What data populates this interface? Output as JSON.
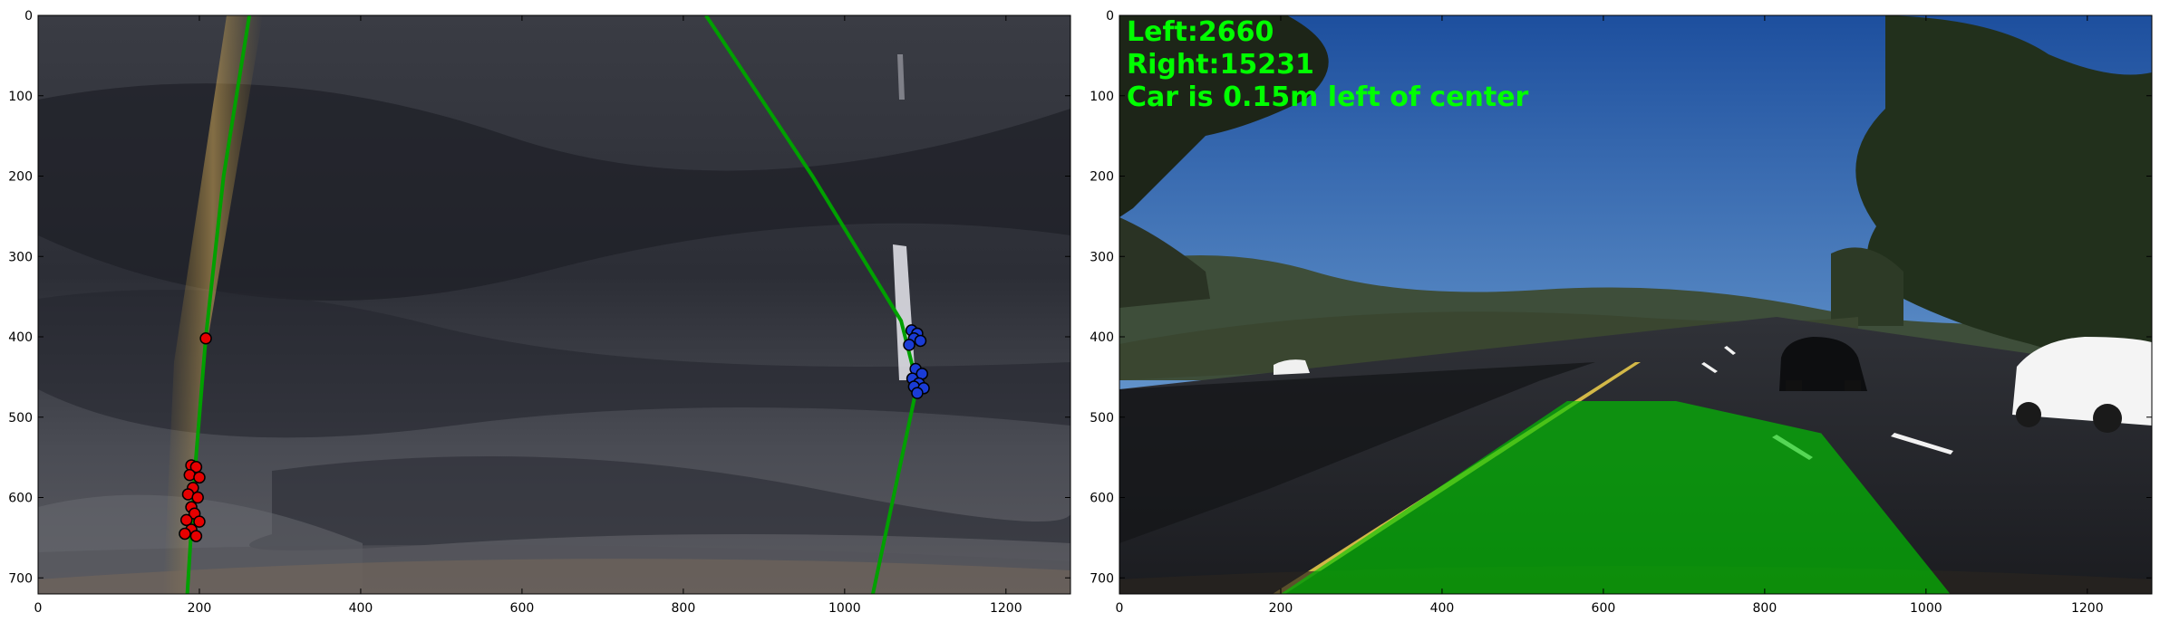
{
  "chart_data": [
    {
      "type": "scatter",
      "title": "",
      "xlabel": "",
      "ylabel": "",
      "xlim": [
        0,
        1280
      ],
      "ylim": [
        720,
        0
      ],
      "x_ticks": [
        0,
        200,
        400,
        600,
        800,
        1000,
        1200
      ],
      "y_ticks": [
        0,
        100,
        200,
        300,
        400,
        500,
        600,
        700
      ],
      "grid": false,
      "legend": "none",
      "background": "warped grayscale road image (bird's-eye view)",
      "series": [
        {
          "kind": "points",
          "color": "#e60000",
          "points": [
            [
              208,
              402
            ],
            [
              190,
              560
            ],
            [
              196,
              562
            ],
            [
              188,
              572
            ],
            [
              200,
              575
            ],
            [
              192,
              588
            ],
            [
              186,
              596
            ],
            [
              198,
              600
            ],
            [
              190,
              612
            ],
            [
              194,
              620
            ],
            [
              184,
              628
            ],
            [
              200,
              630
            ],
            [
              190,
              640
            ],
            [
              182,
              645
            ],
            [
              196,
              648
            ]
          ]
        },
        {
          "kind": "points",
          "color": "#1a3cd6",
          "points": [
            [
              1083,
              392
            ],
            [
              1090,
              396
            ],
            [
              1086,
              402
            ],
            [
              1094,
              405
            ],
            [
              1080,
              410
            ],
            [
              1088,
              440
            ],
            [
              1096,
              446
            ],
            [
              1084,
              452
            ],
            [
              1092,
              458
            ],
            [
              1086,
              462
            ],
            [
              1098,
              464
            ],
            [
              1090,
              470
            ]
          ]
        },
        {
          "kind": "fit-line",
          "color": "#00a000",
          "points": [
            [
              262,
              0
            ],
            [
              230,
              200
            ],
            [
              208,
              400
            ],
            [
              195,
              560
            ],
            [
              185,
              720
            ]
          ]
        },
        {
          "kind": "fit-line",
          "color": "#00a000",
          "points": [
            [
              828,
              0
            ],
            [
              960,
              200
            ],
            [
              1070,
              380
            ],
            [
              1090,
              460
            ],
            [
              1035,
              720
            ]
          ]
        }
      ]
    },
    {
      "type": "image",
      "title": "",
      "xlabel": "",
      "ylabel": "",
      "xlim": [
        0,
        1280
      ],
      "ylim": [
        720,
        0
      ],
      "x_ticks": [
        0,
        200,
        400,
        600,
        800,
        1000,
        1200
      ],
      "y_ticks": [
        0,
        100,
        200,
        300,
        400,
        500,
        600,
        700
      ],
      "grid": false,
      "background": "road camera frame with green lane overlay",
      "lane_polygon": [
        [
          200,
          720
        ],
        [
          555,
          480
        ],
        [
          690,
          480
        ],
        [
          870,
          520
        ],
        [
          1030,
          720
        ]
      ],
      "lane_color": "#00c800",
      "annotations": [
        "Left:2660",
        "Right:15231",
        "Car is 0.15m left of center"
      ]
    }
  ]
}
